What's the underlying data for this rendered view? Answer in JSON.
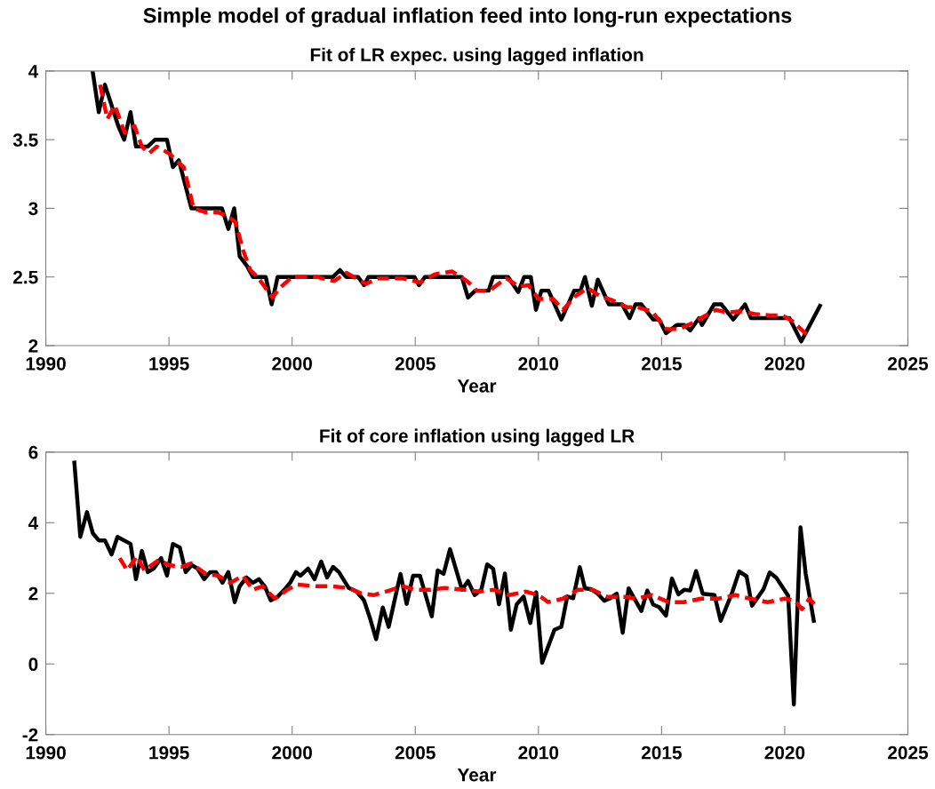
{
  "chart_data": [
    {
      "type": "line",
      "title": "Fit of LR expec. using lagged inflation",
      "xlabel": "Year",
      "annotations": [
        "Simple model of gradual inflation feed into long-run expectations"
      ],
      "xlim": [
        1990,
        2025
      ],
      "xticks": [
        1990,
        1995,
        2000,
        2005,
        2010,
        2015,
        2020,
        2025
      ],
      "ylim": [
        2,
        4
      ],
      "yticks": [
        2,
        2.5,
        3,
        3.5,
        4
      ],
      "marker": "none",
      "series": [
        {
          "color": "#000000",
          "line_style": "solid",
          "x": [
            1991.9,
            1992.15,
            1992.4,
            1992.94,
            1993.18,
            1993.44,
            1993.66,
            1994.14,
            1994.44,
            1994.92,
            1995.16,
            1995.4,
            1995.91,
            1997.15,
            1997.41,
            1997.65,
            1997.87,
            1998.17,
            1998.41,
            1998.93,
            1999.17,
            1999.41,
            2001.66,
            2001.94,
            2002.2,
            2002.68,
            2002.92,
            2003.1,
            2004.97,
            2005.15,
            2005.39,
            2006.89,
            2007.14,
            2007.44,
            2007.98,
            2008.16,
            2008.77,
            2009.18,
            2009.42,
            2009.69,
            2009.9,
            2010.12,
            2010.41,
            2010.93,
            2011.45,
            2011.71,
            2011.89,
            2012.17,
            2012.41,
            2012.86,
            2013.4,
            2013.7,
            2013.94,
            2014.18,
            2014.66,
            2014.9,
            2015.18,
            2015.62,
            2015.92,
            2016.16,
            2016.52,
            2016.64,
            2017.13,
            2017.43,
            2017.91,
            2018.39,
            2018.63,
            2020.19,
            2020.67,
            2021.43
          ],
          "values": [
            4.0,
            3.7,
            3.9,
            3.6,
            3.5,
            3.7,
            3.45,
            3.45,
            3.5,
            3.5,
            3.3,
            3.35,
            3.0,
            3.0,
            2.85,
            3.0,
            2.65,
            2.58,
            2.5,
            2.5,
            2.3,
            2.5,
            2.5,
            2.55,
            2.5,
            2.5,
            2.44,
            2.5,
            2.5,
            2.44,
            2.5,
            2.5,
            2.35,
            2.4,
            2.4,
            2.5,
            2.5,
            2.39,
            2.5,
            2.5,
            2.26,
            2.4,
            2.4,
            2.19,
            2.4,
            2.4,
            2.5,
            2.29,
            2.48,
            2.3,
            2.3,
            2.2,
            2.3,
            2.3,
            2.19,
            2.19,
            2.09,
            2.15,
            2.15,
            2.11,
            2.2,
            2.15,
            2.3,
            2.3,
            2.19,
            2.3,
            2.2,
            2.2,
            2.03,
            2.29
          ]
        },
        {
          "color": "#ff0000",
          "line_style": "dashed",
          "x": [
            1992.2,
            1992.5,
            1992.8,
            1993.2,
            1993.6,
            1993.9,
            1994.2,
            1994.5,
            1995.0,
            1995.3,
            1995.6,
            1996.0,
            1996.5,
            1997.0,
            1997.3,
            1997.7,
            1998.0,
            1998.3,
            1998.6,
            1999.2,
            1999.5,
            2000.0,
            2001.0,
            2001.7,
            2002.2,
            2002.6,
            2003.0,
            2003.5,
            2004.5,
            2005.2,
            2005.8,
            2006.5,
            2007.1,
            2007.5,
            2008.0,
            2008.7,
            2009.2,
            2009.6,
            2010.0,
            2010.6,
            2011.0,
            2011.5,
            2012.0,
            2012.5,
            2013.0,
            2013.6,
            2014.0,
            2014.6,
            2015.2,
            2015.7,
            2016.2,
            2016.7,
            2017.2,
            2017.7,
            2018.2,
            2018.8,
            2019.4,
            2019.9,
            2020.3,
            2020.6,
            2020.9
          ],
          "values": [
            3.9,
            3.65,
            3.75,
            3.55,
            3.6,
            3.45,
            3.4,
            3.45,
            3.4,
            3.35,
            3.3,
            3.0,
            2.97,
            2.97,
            2.95,
            2.9,
            2.7,
            2.55,
            2.5,
            2.35,
            2.42,
            2.5,
            2.5,
            2.47,
            2.53,
            2.49,
            2.45,
            2.49,
            2.49,
            2.46,
            2.52,
            2.54,
            2.47,
            2.4,
            2.4,
            2.49,
            2.43,
            2.44,
            2.34,
            2.34,
            2.26,
            2.36,
            2.42,
            2.36,
            2.33,
            2.28,
            2.28,
            2.25,
            2.12,
            2.12,
            2.16,
            2.21,
            2.26,
            2.24,
            2.25,
            2.23,
            2.22,
            2.22,
            2.18,
            2.13,
            2.08
          ]
        }
      ]
    },
    {
      "type": "line",
      "title": "Fit of core inflation using lagged LR",
      "xlabel": "Year",
      "xlim": [
        1990,
        2025
      ],
      "xticks": [
        1990,
        1995,
        2000,
        2005,
        2010,
        2015,
        2020,
        2025
      ],
      "ylim": [
        -2,
        6
      ],
      "yticks": [
        -2,
        0,
        2,
        4,
        6
      ],
      "marker": "none",
      "series": [
        {
          "color": "#000000",
          "line_style": "solid",
          "x": [
            1991.16,
            1991.4,
            1991.67,
            1991.91,
            1992.15,
            1992.4,
            1992.67,
            1992.91,
            1993.44,
            1993.66,
            1993.9,
            1994.14,
            1994.38,
            1994.68,
            1994.92,
            1995.16,
            1995.44,
            1995.68,
            1995.92,
            1996.16,
            1996.43,
            1996.67,
            1996.91,
            1997.17,
            1997.41,
            1997.67,
            1997.87,
            1998.15,
            1998.41,
            1998.65,
            1998.89,
            1999.13,
            1999.41,
            1999.68,
            1999.92,
            2000.16,
            2000.34,
            2000.65,
            2000.91,
            2001.18,
            2001.42,
            2001.66,
            2001.9,
            2002.3,
            2002.62,
            2002.92,
            2003.16,
            2003.41,
            2003.68,
            2003.92,
            2004.4,
            2004.65,
            2004.91,
            2005.19,
            2005.67,
            2005.91,
            2006.15,
            2006.41,
            2006.9,
            2007.14,
            2007.41,
            2007.68,
            2007.92,
            2008.16,
            2008.4,
            2008.64,
            2008.88,
            2009.12,
            2009.4,
            2009.67,
            2009.91,
            2010.15,
            2010.65,
            2010.93,
            2011.17,
            2011.41,
            2011.68,
            2011.89,
            2012.13,
            2012.41,
            2012.67,
            2012.91,
            2013.18,
            2013.42,
            2013.66,
            2014.18,
            2014.42,
            2014.66,
            2014.9,
            2015.18,
            2015.42,
            2015.68,
            2015.92,
            2016.16,
            2016.4,
            2016.67,
            2017.15,
            2017.4,
            2017.85,
            2018.15,
            2018.45,
            2018.67,
            2019.14,
            2019.39,
            2019.65,
            2020.14,
            2020.37,
            2020.64,
            2020.85,
            2021.18
          ],
          "values": [
            5.7,
            3.6,
            4.3,
            3.7,
            3.5,
            3.5,
            3.1,
            3.6,
            3.4,
            2.4,
            3.2,
            2.6,
            2.7,
            3.0,
            2.5,
            3.4,
            3.3,
            2.6,
            2.8,
            2.7,
            2.4,
            2.6,
            2.6,
            2.3,
            2.6,
            1.75,
            2.2,
            2.45,
            2.3,
            2.4,
            2.2,
            1.8,
            1.9,
            2.1,
            2.3,
            2.6,
            2.5,
            2.7,
            2.4,
            2.9,
            2.45,
            2.75,
            2.6,
            2.15,
            2.05,
            1.8,
            1.3,
            0.7,
            1.6,
            1.05,
            2.55,
            1.7,
            2.5,
            2.5,
            1.35,
            2.65,
            2.55,
            3.25,
            2.1,
            2.35,
            1.95,
            2.1,
            2.82,
            2.7,
            1.69,
            2.56,
            0.97,
            1.69,
            1.91,
            1.16,
            2.03,
            0.03,
            0.97,
            1.05,
            1.91,
            1.86,
            2.74,
            2.14,
            2.12,
            1.99,
            1.79,
            1.86,
            1.99,
            0.88,
            2.14,
            1.5,
            2.08,
            1.68,
            1.61,
            1.37,
            2.42,
            1.97,
            2.1,
            2.08,
            2.63,
            1.99,
            1.95,
            1.22,
            1.99,
            2.62,
            2.48,
            1.65,
            2.12,
            2.59,
            2.45,
            1.93,
            -1.15,
            3.87,
            2.56,
            1.22
          ]
        },
        {
          "color": "#ff0000",
          "line_style": "dashed",
          "x": [
            1993.0,
            1993.3,
            1993.7,
            1994.0,
            1994.6,
            1995.0,
            1995.5,
            1995.9,
            1996.5,
            1997.0,
            1997.5,
            1998.0,
            1998.4,
            1998.8,
            1999.3,
            1999.8,
            2000.2,
            2001.0,
            2001.6,
            2002.3,
            2002.8,
            2003.3,
            2003.8,
            2004.5,
            2005.0,
            2005.6,
            2006.2,
            2007.0,
            2007.6,
            2008.2,
            2008.8,
            2009.5,
            2010.0,
            2010.4,
            2011.0,
            2011.6,
            2012.2,
            2012.8,
            2013.5,
            2014.0,
            2014.6,
            2015.3,
            2015.9,
            2016.6,
            2017.3,
            2018.0,
            2018.6,
            2019.3,
            2020.0,
            2020.4,
            2020.7,
            2021.0,
            2021.2
          ],
          "values": [
            3.0,
            2.65,
            3.05,
            2.65,
            2.95,
            2.8,
            2.75,
            2.85,
            2.55,
            2.5,
            2.3,
            2.5,
            2.1,
            2.2,
            1.85,
            2.1,
            2.25,
            2.2,
            2.2,
            2.15,
            2.0,
            1.95,
            2.05,
            2.2,
            2.1,
            2.1,
            2.15,
            2.1,
            2.05,
            2.1,
            1.95,
            2.05,
            1.95,
            1.75,
            1.85,
            2.1,
            2.1,
            1.9,
            1.9,
            1.85,
            1.95,
            1.75,
            1.75,
            1.85,
            1.85,
            1.95,
            1.85,
            1.75,
            1.85,
            1.8,
            1.55,
            1.85,
            1.7
          ]
        }
      ]
    }
  ]
}
